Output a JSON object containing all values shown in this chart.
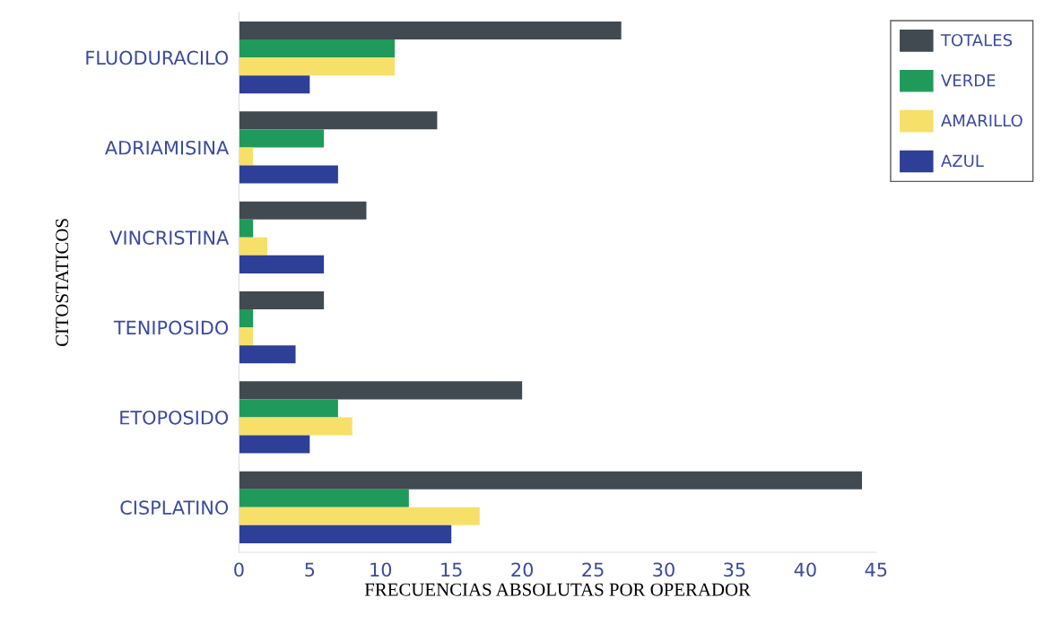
{
  "chart_data": {
    "type": "bar",
    "orientation": "horizontal",
    "xlabel": "FRECUENCIAS ABSOLUTAS POR OPERADOR",
    "ylabel": "CITOSTATICOS",
    "categories": [
      "FLUODURACILO",
      "ADRIAMISINA",
      "VINCRISTINA",
      "TENIPOSIDO",
      "ETOPOSIDO",
      "CISPLATINO"
    ],
    "series": [
      {
        "name": "TOTALES",
        "color": "#404a50",
        "values": [
          27,
          14,
          9,
          6,
          20,
          44
        ]
      },
      {
        "name": "VERDE",
        "color": "#1f9a5a",
        "values": [
          11,
          6,
          1,
          1,
          7,
          12
        ]
      },
      {
        "name": "AMARILLO",
        "color": "#f7e06a",
        "values": [
          11,
          1,
          2,
          1,
          8,
          17
        ]
      },
      {
        "name": "AZUL",
        "color": "#2e3f98",
        "values": [
          5,
          7,
          6,
          4,
          5,
          15
        ]
      }
    ],
    "xlim": [
      0,
      45
    ],
    "xticks": [
      0,
      5,
      10,
      15,
      20,
      25,
      30,
      35,
      40,
      45
    ],
    "grid": false,
    "legend": "top right"
  }
}
